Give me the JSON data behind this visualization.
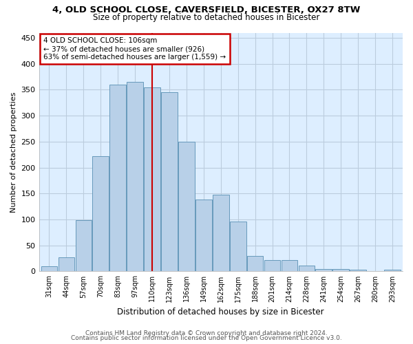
{
  "title1": "4, OLD SCHOOL CLOSE, CAVERSFIELD, BICESTER, OX27 8TW",
  "title2": "Size of property relative to detached houses in Bicester",
  "xlabel": "Distribution of detached houses by size in Bicester",
  "ylabel": "Number of detached properties",
  "footer1": "Contains HM Land Registry data © Crown copyright and database right 2024.",
  "footer2": "Contains public sector information licensed under the Open Government Licence v3.0.",
  "annotation_line1": "4 OLD SCHOOL CLOSE: 106sqm",
  "annotation_line2": "← 37% of detached houses are smaller (926)",
  "annotation_line3": "63% of semi-detached houses are larger (1,559) →",
  "bar_labels": [
    "31sqm",
    "44sqm",
    "57sqm",
    "70sqm",
    "83sqm",
    "97sqm",
    "110sqm",
    "123sqm",
    "136sqm",
    "149sqm",
    "162sqm",
    "175sqm",
    "188sqm",
    "201sqm",
    "214sqm",
    "228sqm",
    "241sqm",
    "254sqm",
    "267sqm",
    "280sqm",
    "293sqm"
  ],
  "bar_heights": [
    10,
    27,
    99,
    222,
    360,
    365,
    355,
    345,
    250,
    138,
    148,
    96,
    30,
    22,
    22,
    11,
    5,
    5,
    3,
    0,
    3
  ],
  "bar_color": "#b8d0e8",
  "bar_edge_color": "#6699bb",
  "vline_x": 6.0,
  "vline_color": "#cc0000",
  "annotation_box_color": "#cc0000",
  "ax_facecolor": "#ddeeff",
  "background_color": "#ffffff",
  "grid_color": "#bbccdd",
  "ylim": [
    0,
    460
  ],
  "yticks": [
    0,
    50,
    100,
    150,
    200,
    250,
    300,
    350,
    400,
    450
  ]
}
